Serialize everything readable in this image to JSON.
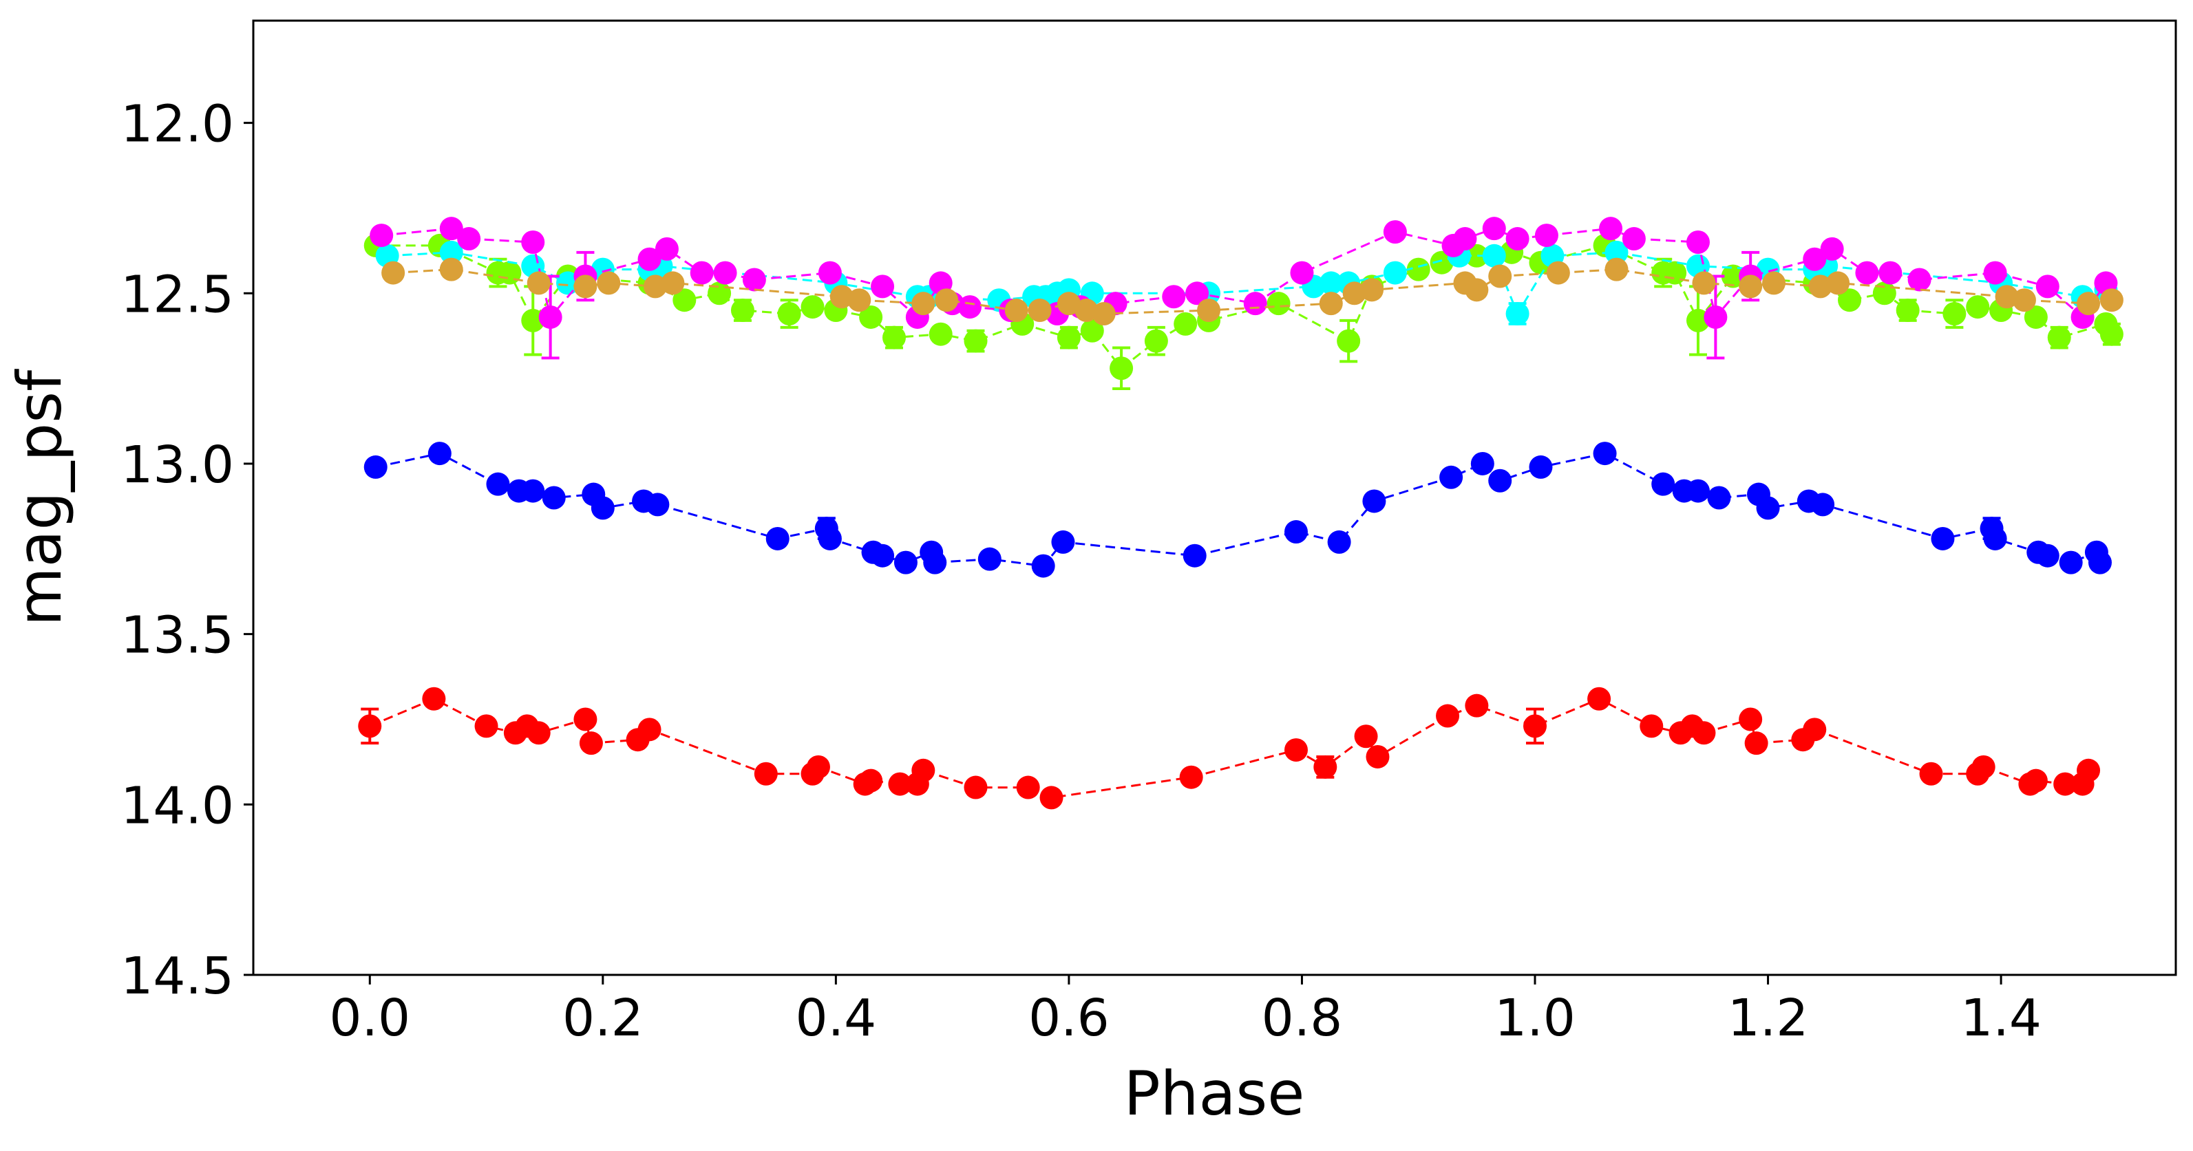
{
  "chart_data": {
    "type": "scatter",
    "title": "",
    "xlabel": "Phase",
    "ylabel": "mag_psf",
    "xlim": [
      -0.1,
      1.55
    ],
    "ylim": [
      14.5,
      11.7
    ],
    "y_inverted": true,
    "grid": false,
    "legend": "none",
    "xticks": [
      {
        "value": 0.0,
        "label": "0.0"
      },
      {
        "value": 0.2,
        "label": "0.2"
      },
      {
        "value": 0.4,
        "label": "0.4"
      },
      {
        "value": 0.6,
        "label": "0.6"
      },
      {
        "value": 0.8,
        "label": "0.8"
      },
      {
        "value": 1.0,
        "label": "1.0"
      },
      {
        "value": 1.2,
        "label": "1.2"
      },
      {
        "value": 1.4,
        "label": "1.4"
      }
    ],
    "yticks": [
      {
        "value": 12.0,
        "label": "12.0"
      },
      {
        "value": 12.5,
        "label": "12.5"
      },
      {
        "value": 13.0,
        "label": "13.0"
      },
      {
        "value": 13.5,
        "label": "13.5"
      },
      {
        "value": 14.0,
        "label": "14.0"
      },
      {
        "value": 14.5,
        "label": "14.5"
      }
    ],
    "series": [
      {
        "name": "red",
        "color": "#ff0000",
        "x": [
          0.0,
          0.055,
          0.1,
          0.125,
          0.135,
          0.145,
          0.185,
          0.19,
          0.23,
          0.24,
          0.34,
          0.38,
          0.385,
          0.425,
          0.43,
          0.455,
          0.47,
          0.475,
          0.52,
          0.565,
          0.585,
          0.705,
          0.795,
          0.82,
          0.855,
          0.865,
          0.925,
          0.95,
          1.0,
          1.055,
          1.1,
          1.125,
          1.135,
          1.145,
          1.185,
          1.19,
          1.23,
          1.24,
          1.34,
          1.38,
          1.385,
          1.425,
          1.43,
          1.455,
          1.47,
          1.475
        ],
        "y": [
          13.77,
          13.69,
          13.77,
          13.79,
          13.77,
          13.79,
          13.75,
          13.82,
          13.81,
          13.78,
          13.91,
          13.91,
          13.89,
          13.94,
          13.93,
          13.94,
          13.94,
          13.9,
          13.95,
          13.95,
          13.98,
          13.92,
          13.84,
          13.89,
          13.8,
          13.86,
          13.74,
          13.71,
          13.77,
          13.69,
          13.77,
          13.79,
          13.77,
          13.79,
          13.75,
          13.82,
          13.81,
          13.78,
          13.91,
          13.91,
          13.89,
          13.94,
          13.93,
          13.94,
          13.94,
          13.9
        ],
        "yerr": [
          0.05,
          0.01,
          0.01,
          0.01,
          0.01,
          0.01,
          0.01,
          0.01,
          0.01,
          0.01,
          0.01,
          0.01,
          0.01,
          0.01,
          0.01,
          0.01,
          0.01,
          0.01,
          0.01,
          0.01,
          0.01,
          0.01,
          0.01,
          0.03,
          0.01,
          0.01,
          0.01,
          0.01,
          0.05,
          0.01,
          0.01,
          0.01,
          0.01,
          0.01,
          0.01,
          0.01,
          0.01,
          0.01,
          0.01,
          0.01,
          0.01,
          0.01,
          0.01,
          0.01,
          0.01,
          0.01
        ]
      },
      {
        "name": "blue",
        "color": "#0000ff",
        "x": [
          0.005,
          0.06,
          0.11,
          0.128,
          0.14,
          0.158,
          0.192,
          0.2,
          0.235,
          0.247,
          0.35,
          0.392,
          0.395,
          0.432,
          0.44,
          0.46,
          0.482,
          0.485,
          0.532,
          0.578,
          0.595,
          0.708,
          0.795,
          0.832,
          0.862,
          0.928,
          0.955,
          0.97,
          1.005,
          1.06,
          1.11,
          1.128,
          1.14,
          1.158,
          1.192,
          1.2,
          1.235,
          1.247,
          1.35,
          1.392,
          1.395,
          1.432,
          1.44,
          1.46,
          1.482,
          1.485
        ],
        "y": [
          13.01,
          12.97,
          13.06,
          13.08,
          13.08,
          13.1,
          13.09,
          13.13,
          13.11,
          13.12,
          13.22,
          13.19,
          13.22,
          13.26,
          13.27,
          13.29,
          13.26,
          13.29,
          13.28,
          13.3,
          13.23,
          13.27,
          13.2,
          13.23,
          13.11,
          13.04,
          13.0,
          13.05,
          13.01,
          12.97,
          13.06,
          13.08,
          13.08,
          13.1,
          13.09,
          13.13,
          13.11,
          13.12,
          13.22,
          13.19,
          13.22,
          13.26,
          13.27,
          13.29,
          13.26,
          13.29
        ],
        "yerr": [
          0.01,
          0.01,
          0.01,
          0.01,
          0.01,
          0.01,
          0.01,
          0.01,
          0.01,
          0.01,
          0.01,
          0.03,
          0.01,
          0.01,
          0.01,
          0.01,
          0.01,
          0.01,
          0.01,
          0.01,
          0.01,
          0.01,
          0.01,
          0.01,
          0.01,
          0.01,
          0.01,
          0.01,
          0.01,
          0.01,
          0.01,
          0.01,
          0.01,
          0.01,
          0.01,
          0.01,
          0.01,
          0.01,
          0.01,
          0.03,
          0.01,
          0.01,
          0.01,
          0.01,
          0.01,
          0.01
        ]
      },
      {
        "name": "green",
        "color": "#7cfc00",
        "x": [
          0.005,
          0.06,
          0.11,
          0.12,
          0.14,
          0.17,
          0.24,
          0.27,
          0.3,
          0.32,
          0.36,
          0.38,
          0.4,
          0.43,
          0.45,
          0.49,
          0.52,
          0.56,
          0.6,
          0.62,
          0.645,
          0.675,
          0.7,
          0.72,
          0.78,
          0.84,
          0.86,
          0.9,
          0.92,
          0.95,
          0.98,
          1.005,
          1.06,
          1.11,
          1.12,
          1.14,
          1.17,
          1.24,
          1.27,
          1.3,
          1.32,
          1.36,
          1.38,
          1.4,
          1.43,
          1.45,
          1.49,
          1.495
        ],
        "y": [
          12.36,
          12.36,
          12.44,
          12.44,
          12.58,
          12.45,
          12.47,
          12.52,
          12.5,
          12.55,
          12.56,
          12.54,
          12.55,
          12.57,
          12.63,
          12.62,
          12.64,
          12.59,
          12.63,
          12.61,
          12.72,
          12.64,
          12.59,
          12.58,
          12.53,
          12.64,
          12.48,
          12.43,
          12.41,
          12.39,
          12.38,
          12.41,
          12.36,
          12.44,
          12.44,
          12.58,
          12.45,
          12.47,
          12.52,
          12.5,
          12.55,
          12.56,
          12.54,
          12.55,
          12.57,
          12.63,
          12.59,
          12.62
        ],
        "yerr": [
          0.01,
          0.01,
          0.04,
          0.01,
          0.1,
          0.01,
          0.01,
          0.01,
          0.01,
          0.03,
          0.04,
          0.01,
          0.01,
          0.01,
          0.03,
          0.01,
          0.03,
          0.01,
          0.03,
          0.01,
          0.06,
          0.04,
          0.01,
          0.01,
          0.01,
          0.06,
          0.01,
          0.01,
          0.01,
          0.01,
          0.01,
          0.01,
          0.01,
          0.04,
          0.01,
          0.1,
          0.01,
          0.01,
          0.01,
          0.01,
          0.03,
          0.04,
          0.01,
          0.01,
          0.01,
          0.03,
          0.01,
          0.03
        ]
      },
      {
        "name": "cyan",
        "color": "#00ffff",
        "x": [
          0.015,
          0.07,
          0.14,
          0.17,
          0.2,
          0.24,
          0.25,
          0.4,
          0.47,
          0.48,
          0.54,
          0.57,
          0.58,
          0.59,
          0.6,
          0.62,
          0.72,
          0.81,
          0.825,
          0.84,
          0.88,
          0.935,
          0.965,
          0.985,
          1.015,
          1.07,
          1.14,
          1.2,
          1.24,
          1.25,
          1.4,
          1.47,
          1.49
        ],
        "y": [
          12.39,
          12.38,
          12.42,
          12.47,
          12.43,
          12.43,
          12.42,
          12.47,
          12.51,
          12.51,
          12.52,
          12.51,
          12.51,
          12.5,
          12.49,
          12.5,
          12.5,
          12.48,
          12.47,
          12.47,
          12.44,
          12.39,
          12.39,
          12.56,
          12.39,
          12.38,
          12.42,
          12.43,
          12.43,
          12.42,
          12.47,
          12.51,
          12.49
        ],
        "yerr": [
          0.01,
          0.01,
          0.01,
          0.01,
          0.01,
          0.01,
          0.01,
          0.01,
          0.01,
          0.01,
          0.01,
          0.01,
          0.01,
          0.01,
          0.01,
          0.01,
          0.01,
          0.01,
          0.01,
          0.01,
          0.01,
          0.01,
          0.01,
          0.03,
          0.01,
          0.01,
          0.01,
          0.01,
          0.01,
          0.01,
          0.01,
          0.01,
          0.01
        ]
      },
      {
        "name": "magenta",
        "color": "#ff00ff",
        "x": [
          0.01,
          0.07,
          0.085,
          0.14,
          0.155,
          0.185,
          0.24,
          0.255,
          0.285,
          0.305,
          0.33,
          0.395,
          0.44,
          0.47,
          0.49,
          0.5,
          0.515,
          0.55,
          0.59,
          0.61,
          0.64,
          0.69,
          0.71,
          0.76,
          0.8,
          0.88,
          0.93,
          0.94,
          0.965,
          0.985,
          1.01,
          1.065,
          1.085,
          1.14,
          1.155,
          1.185,
          1.24,
          1.255,
          1.285,
          1.305,
          1.33,
          1.395,
          1.44,
          1.47,
          1.49
        ],
        "y": [
          12.33,
          12.31,
          12.34,
          12.35,
          12.57,
          12.45,
          12.4,
          12.37,
          12.44,
          12.44,
          12.46,
          12.44,
          12.48,
          12.57,
          12.47,
          12.53,
          12.54,
          12.55,
          12.56,
          12.54,
          12.53,
          12.51,
          12.5,
          12.53,
          12.44,
          12.32,
          12.36,
          12.34,
          12.31,
          12.34,
          12.33,
          12.31,
          12.34,
          12.35,
          12.57,
          12.45,
          12.4,
          12.37,
          12.44,
          12.44,
          12.46,
          12.44,
          12.48,
          12.57,
          12.47
        ],
        "yerr": [
          0.01,
          0.01,
          0.01,
          0.01,
          0.12,
          0.07,
          0.01,
          0.01,
          0.01,
          0.01,
          0.01,
          0.01,
          0.01,
          0.01,
          0.01,
          0.01,
          0.01,
          0.01,
          0.01,
          0.01,
          0.01,
          0.01,
          0.01,
          0.01,
          0.01,
          0.01,
          0.01,
          0.01,
          0.01,
          0.01,
          0.01,
          0.01,
          0.01,
          0.01,
          0.12,
          0.07,
          0.01,
          0.01,
          0.01,
          0.01,
          0.01,
          0.01,
          0.01,
          0.01,
          0.01
        ]
      },
      {
        "name": "orange",
        "color": "#daa038",
        "x": [
          0.02,
          0.07,
          0.145,
          0.185,
          0.205,
          0.245,
          0.26,
          0.405,
          0.42,
          0.475,
          0.495,
          0.555,
          0.575,
          0.6,
          0.615,
          0.63,
          0.72,
          0.825,
          0.845,
          0.86,
          0.94,
          0.95,
          0.97,
          1.02,
          1.07,
          1.145,
          1.185,
          1.205,
          1.245,
          1.26,
          1.405,
          1.42,
          1.475,
          1.495
        ],
        "y": [
          12.44,
          12.43,
          12.47,
          12.48,
          12.47,
          12.48,
          12.47,
          12.51,
          12.52,
          12.53,
          12.52,
          12.55,
          12.55,
          12.53,
          12.55,
          12.56,
          12.55,
          12.53,
          12.5,
          12.49,
          12.47,
          12.49,
          12.45,
          12.44,
          12.43,
          12.47,
          12.48,
          12.47,
          12.48,
          12.47,
          12.51,
          12.52,
          12.53,
          12.52
        ],
        "yerr": [
          0.01,
          0.01,
          0.01,
          0.01,
          0.01,
          0.01,
          0.01,
          0.01,
          0.01,
          0.01,
          0.01,
          0.01,
          0.01,
          0.01,
          0.01,
          0.01,
          0.01,
          0.01,
          0.01,
          0.01,
          0.01,
          0.01,
          0.01,
          0.01,
          0.01,
          0.01,
          0.01,
          0.01,
          0.01,
          0.01,
          0.01,
          0.01,
          0.01,
          0.01
        ]
      }
    ]
  }
}
